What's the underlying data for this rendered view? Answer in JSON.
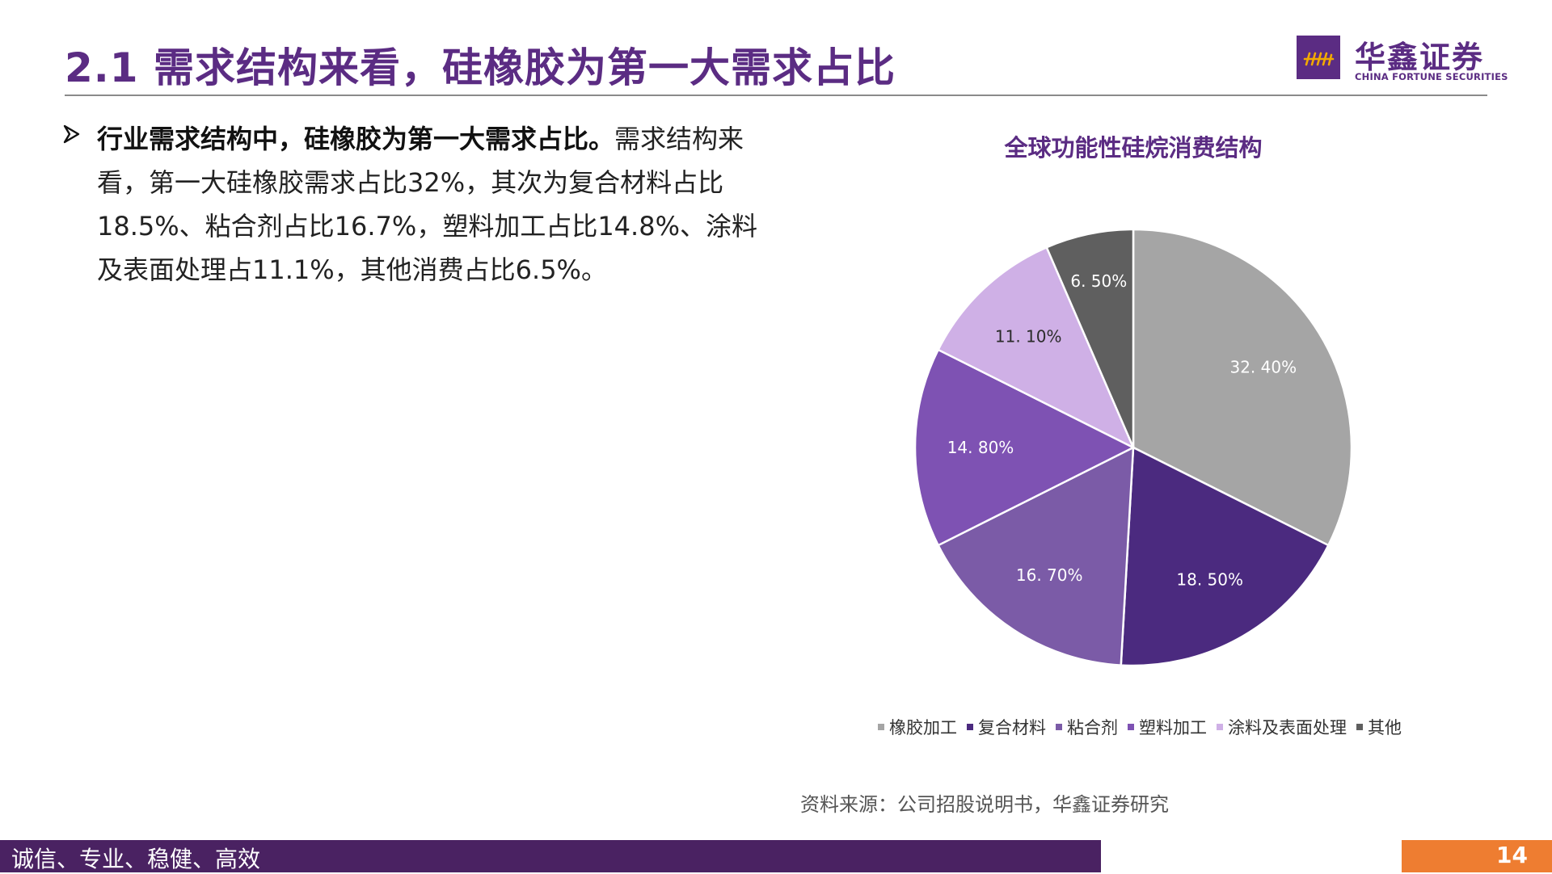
{
  "slide": {
    "title": "2.1 需求结构来看，硅橡胶为第一大需求占比",
    "page_number": "14",
    "footer_slogan": "诚信、专业、稳健、高效"
  },
  "logo": {
    "name_cn": "华鑫证券",
    "name_en": "CHINA FORTUNE SECURITIES",
    "brand_color": "#5b2c83"
  },
  "bullet": {
    "marker_icon": "arrow-bullet-icon",
    "bold_text": "行业需求结构中，硅橡胶为第一大需求占比。",
    "body_text": "需求结构来看，第一大硅橡胶需求占比32%，其次为复合材料占比18.5%、粘合剂占比16.7%，塑料加工占比14.8%、涂料及表面处理占11.1%，其他消费占比6.5%。"
  },
  "chart_data": {
    "type": "pie",
    "title": "全球功能性硅烷消费结构",
    "start_angle_deg": 0,
    "direction": "clockwise",
    "legend_position": "bottom",
    "slices": [
      {
        "name": "橡胶加工",
        "value": 32.4,
        "label": "32. 40%",
        "color": "#a5a5a5",
        "label_color": "#ffffff"
      },
      {
        "name": "复合材料",
        "value": 18.5,
        "label": "18. 50%",
        "color": "#4b2a7f",
        "label_color": "#ffffff"
      },
      {
        "name": "粘合剂",
        "value": 16.7,
        "label": "16. 70%",
        "color": "#7b5ba7",
        "label_color": "#ffffff"
      },
      {
        "name": "塑料加工",
        "value": 14.8,
        "label": "14. 80%",
        "color": "#7e52b3",
        "label_color": "#ffffff"
      },
      {
        "name": "涂料及表面处理",
        "value": 11.1,
        "label": "11. 10%",
        "color": "#cfb0e6",
        "label_color": "#2b2b2b"
      },
      {
        "name": "其他",
        "value": 6.5,
        "label": "6. 50%",
        "color": "#5f5f5f",
        "label_color": "#ffffff"
      }
    ]
  },
  "source_note": "资料来源：公司招股说明书，华鑫证券研究"
}
